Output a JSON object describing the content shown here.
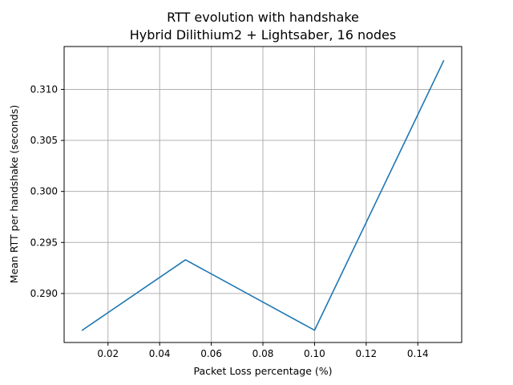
{
  "chart_data": {
    "type": "line",
    "title": "RTT evolution with handshake",
    "subtitle": "Hybrid Dilithium2 + Lightsaber, 16 nodes",
    "xlabel": "Packet Loss percentage (%)",
    "ylabel": "Mean RTT per handshake (seconds)",
    "xlim": [
      0.003,
      0.157
    ],
    "ylim": [
      0.2852,
      0.3142
    ],
    "xticks": [
      0.02,
      0.04,
      0.06,
      0.08,
      0.1,
      0.12,
      0.14
    ],
    "xtick_labels": [
      "0.02",
      "0.04",
      "0.06",
      "0.08",
      "0.10",
      "0.12",
      "0.14"
    ],
    "yticks": [
      0.29,
      0.295,
      0.3,
      0.305,
      0.31
    ],
    "ytick_labels": [
      "0.290",
      "0.295",
      "0.300",
      "0.305",
      "0.310"
    ],
    "grid": true,
    "series": [
      {
        "color": "#1f77b4",
        "x": [
          0.01,
          0.05,
          0.1,
          0.15
        ],
        "y": [
          0.2864,
          0.2933,
          0.2864,
          0.3128
        ]
      }
    ]
  }
}
